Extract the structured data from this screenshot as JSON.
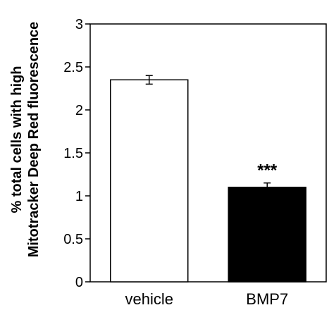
{
  "chart_data": {
    "type": "bar",
    "categories": [
      "vehicle",
      "BMP7"
    ],
    "values": [
      2.35,
      1.1
    ],
    "errors": [
      0.05,
      0.05
    ],
    "bar_colors": [
      "#ffffff",
      "#000000"
    ],
    "bar_edge_color": "#000000",
    "annotations": [
      {
        "category": "BMP7",
        "text": "***"
      }
    ],
    "ylabel_lines": [
      "% total cells with high",
      "Mitotracker Deep Red fluorescence"
    ],
    "yticks": [
      0,
      0.5,
      1,
      1.5,
      2,
      2.5,
      3
    ],
    "ytick_labels": [
      "0",
      "0.5",
      "1",
      "1.5",
      "2",
      "2.5",
      "3"
    ],
    "ylim": [
      0,
      3
    ],
    "grid": false,
    "legend": "none"
  }
}
